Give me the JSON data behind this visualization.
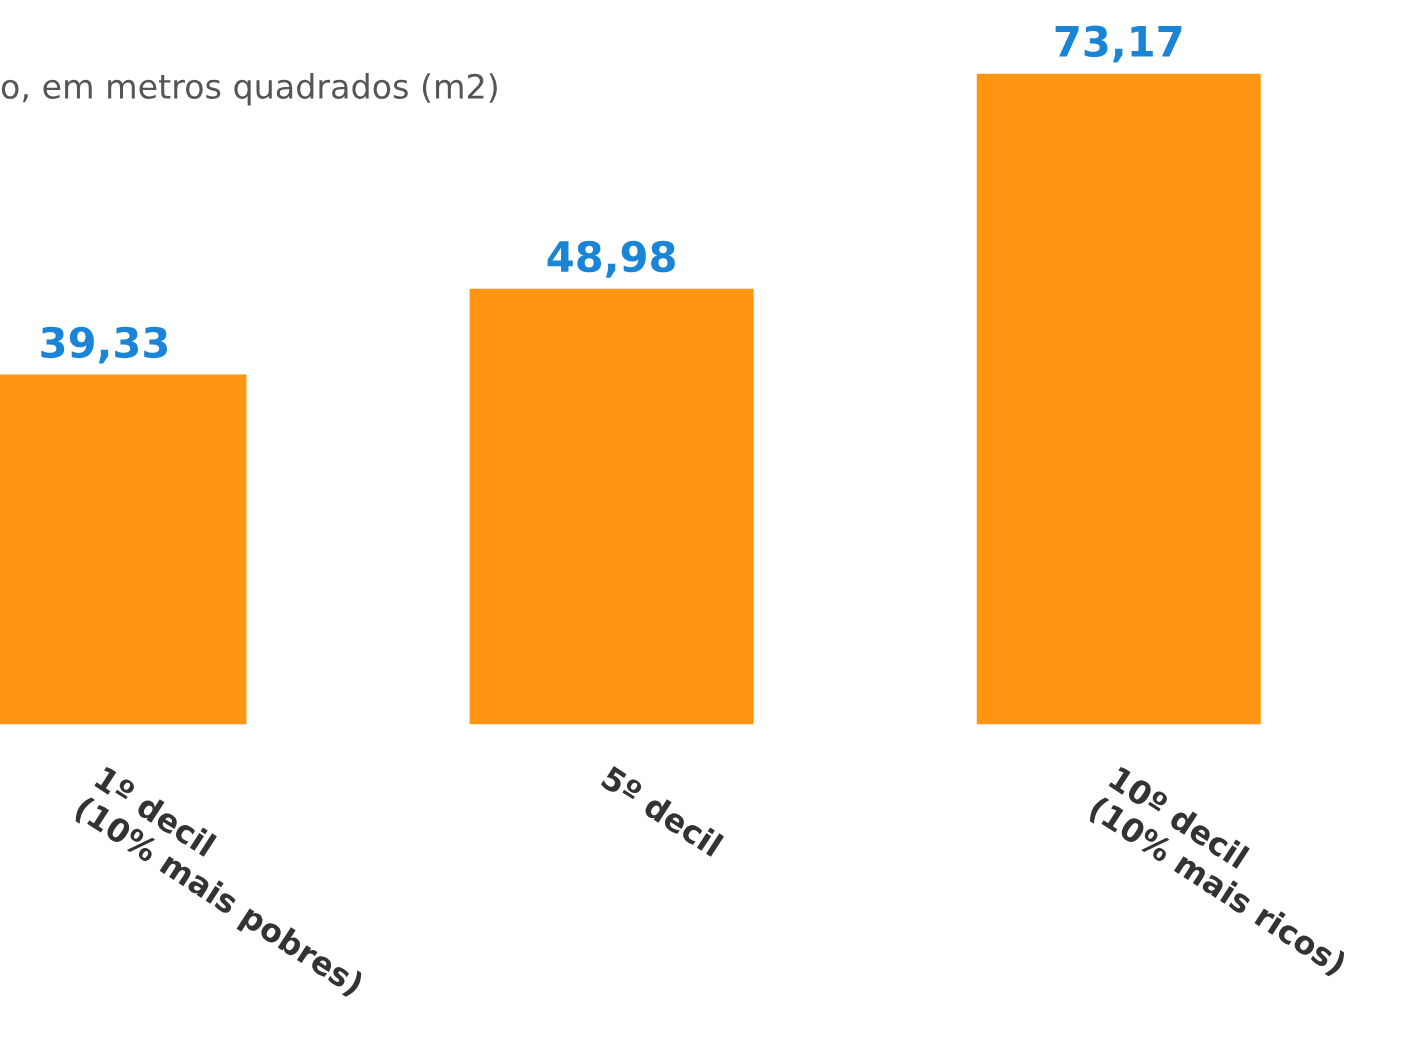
{
  "chart_data": {
    "type": "bar",
    "title": "o, em metros quadrados (m2)",
    "categories": [
      "1º decil\n(10% mais pobres)",
      "5º decil",
      "10º decil\n(10% mais ricos)"
    ],
    "values": [
      39.33,
      48.98,
      73.17
    ],
    "value_labels": [
      "39,33",
      "48,98",
      "73,17"
    ],
    "color": "#ff9511",
    "grid": false
  }
}
